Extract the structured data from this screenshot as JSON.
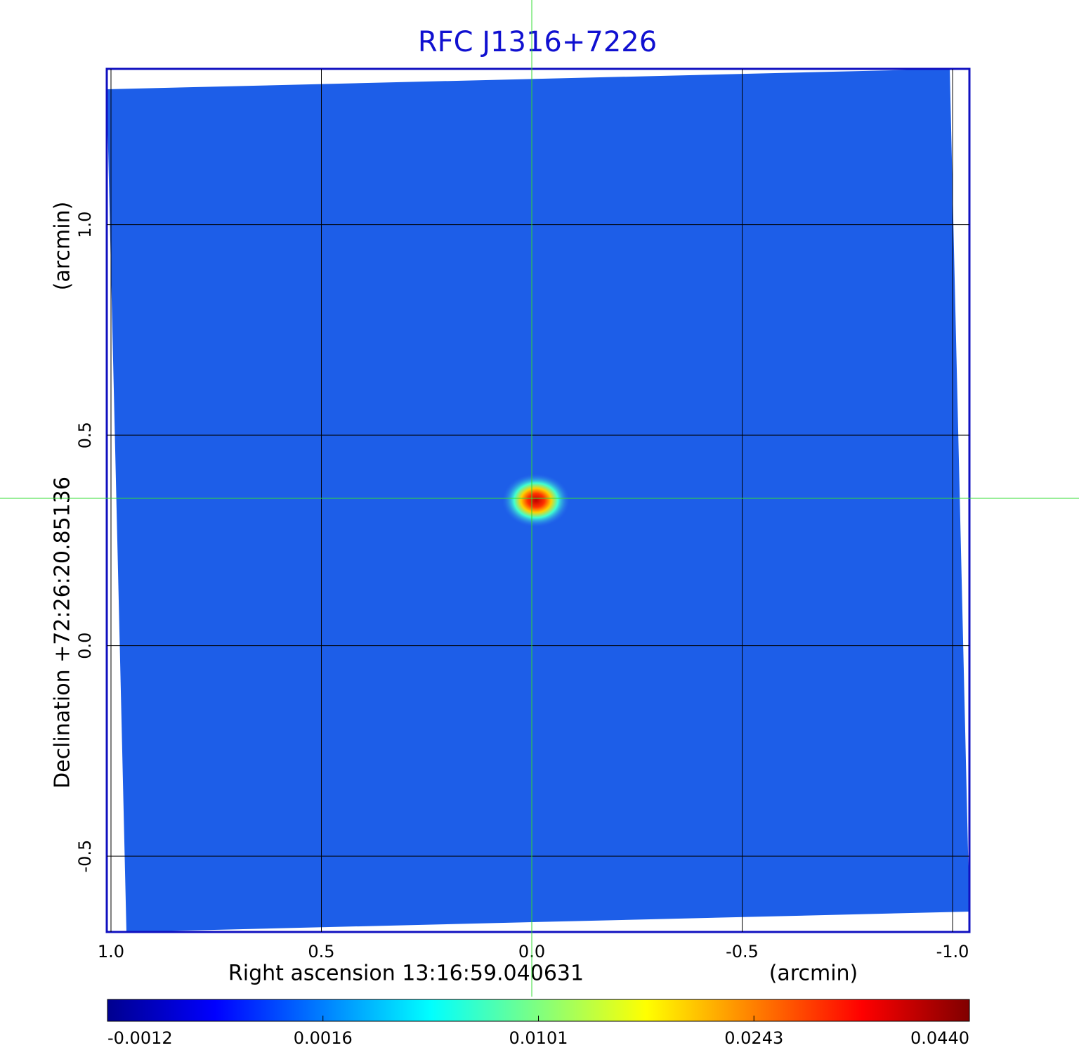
{
  "chart_data": {
    "type": "image",
    "title": "RFC J1316+7226",
    "x_label": "Right ascension  13:16:59.040631",
    "x_unit": "(arcmin)",
    "y_label": "Declination  +72:26:20.85136",
    "y_unit": "(arcmin)",
    "xlim": [
      1.01,
      -1.04
    ],
    "ylim": [
      -0.68,
      1.37
    ],
    "xticks": [
      {
        "value": 1,
        "label": "1.0"
      },
      0.5,
      {
        "value": 0,
        "label": "0.0"
      },
      -0.5,
      {
        "value": -1,
        "label": "-1.0"
      }
    ],
    "yticks": [
      -0.5,
      {
        "value": 0,
        "label": "0.0"
      },
      0.5,
      {
        "value": 1,
        "label": "1.0"
      }
    ],
    "grid": true,
    "crosshair": {
      "x": 0,
      "y": 0.35
    },
    "colorbar": {
      "ticks": [
        -0.0012,
        0.0016,
        0.0101,
        0.0243,
        {
          "value": 0.044,
          "label": "0.0440"
        }
      ]
    }
  }
}
